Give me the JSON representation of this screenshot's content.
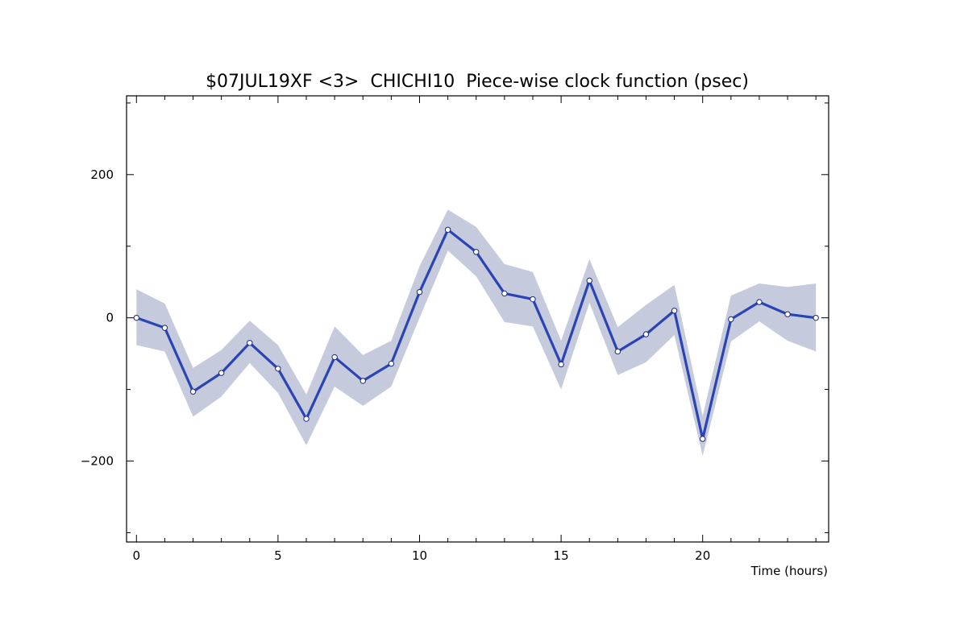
{
  "chart_data": {
    "type": "line",
    "title": "$07JUL19XF <3>  CHICHI10  Piece-wise clock function (psec)",
    "xlabel": "Time (hours)",
    "ylabel": "",
    "xlim": [
      -0.35,
      24.45
    ],
    "ylim": [
      -313,
      310
    ],
    "x_major_ticks": [
      0,
      5,
      10,
      15,
      20
    ],
    "x_tick_labels": [
      "0",
      "5",
      "10",
      "15",
      "20"
    ],
    "x_minor_ticks": [
      1,
      2,
      3,
      4,
      6,
      7,
      8,
      9,
      11,
      12,
      13,
      14,
      16,
      17,
      18,
      19,
      21,
      22,
      23,
      24
    ],
    "y_major_ticks": [
      -200,
      0,
      200
    ],
    "y_tick_labels": [
      "−200",
      "0",
      "200"
    ],
    "y_minor_ticks": [
      -300,
      -100,
      100,
      300
    ],
    "grid": false,
    "legend": "none",
    "colors": {
      "line": "#2a44b5",
      "band": "#c5cadc",
      "marker_fill": "#ffffff",
      "marker_stroke": "#1a2a7a",
      "axes": "#000000"
    },
    "series": [
      {
        "x": [
          0,
          1,
          2,
          3,
          4,
          5,
          6,
          7,
          8,
          9,
          10,
          11,
          12,
          13,
          14,
          15,
          16,
          17,
          18,
          19,
          20,
          21,
          22,
          23,
          24
        ],
        "values": [
          0,
          -14,
          -103,
          -77,
          -35,
          -71,
          -141,
          -55,
          -88,
          -64,
          36,
          123,
          92,
          34,
          26,
          -65,
          52,
          -47,
          -23,
          10,
          -169,
          -2,
          22,
          5,
          0
        ],
        "upper": [
          40,
          20,
          -70,
          -45,
          -4,
          -38,
          -107,
          -12,
          -52,
          -32,
          72,
          151,
          127,
          75,
          64,
          -32,
          82,
          -13,
          18,
          46,
          -137,
          31,
          48,
          43,
          48
        ],
        "lower": [
          -38,
          -47,
          -138,
          -110,
          -63,
          -105,
          -178,
          -96,
          -123,
          -96,
          0,
          94,
          58,
          -6,
          -12,
          -100,
          21,
          -80,
          -62,
          -24,
          -193,
          -33,
          -5,
          -32,
          -47
        ]
      }
    ]
  }
}
